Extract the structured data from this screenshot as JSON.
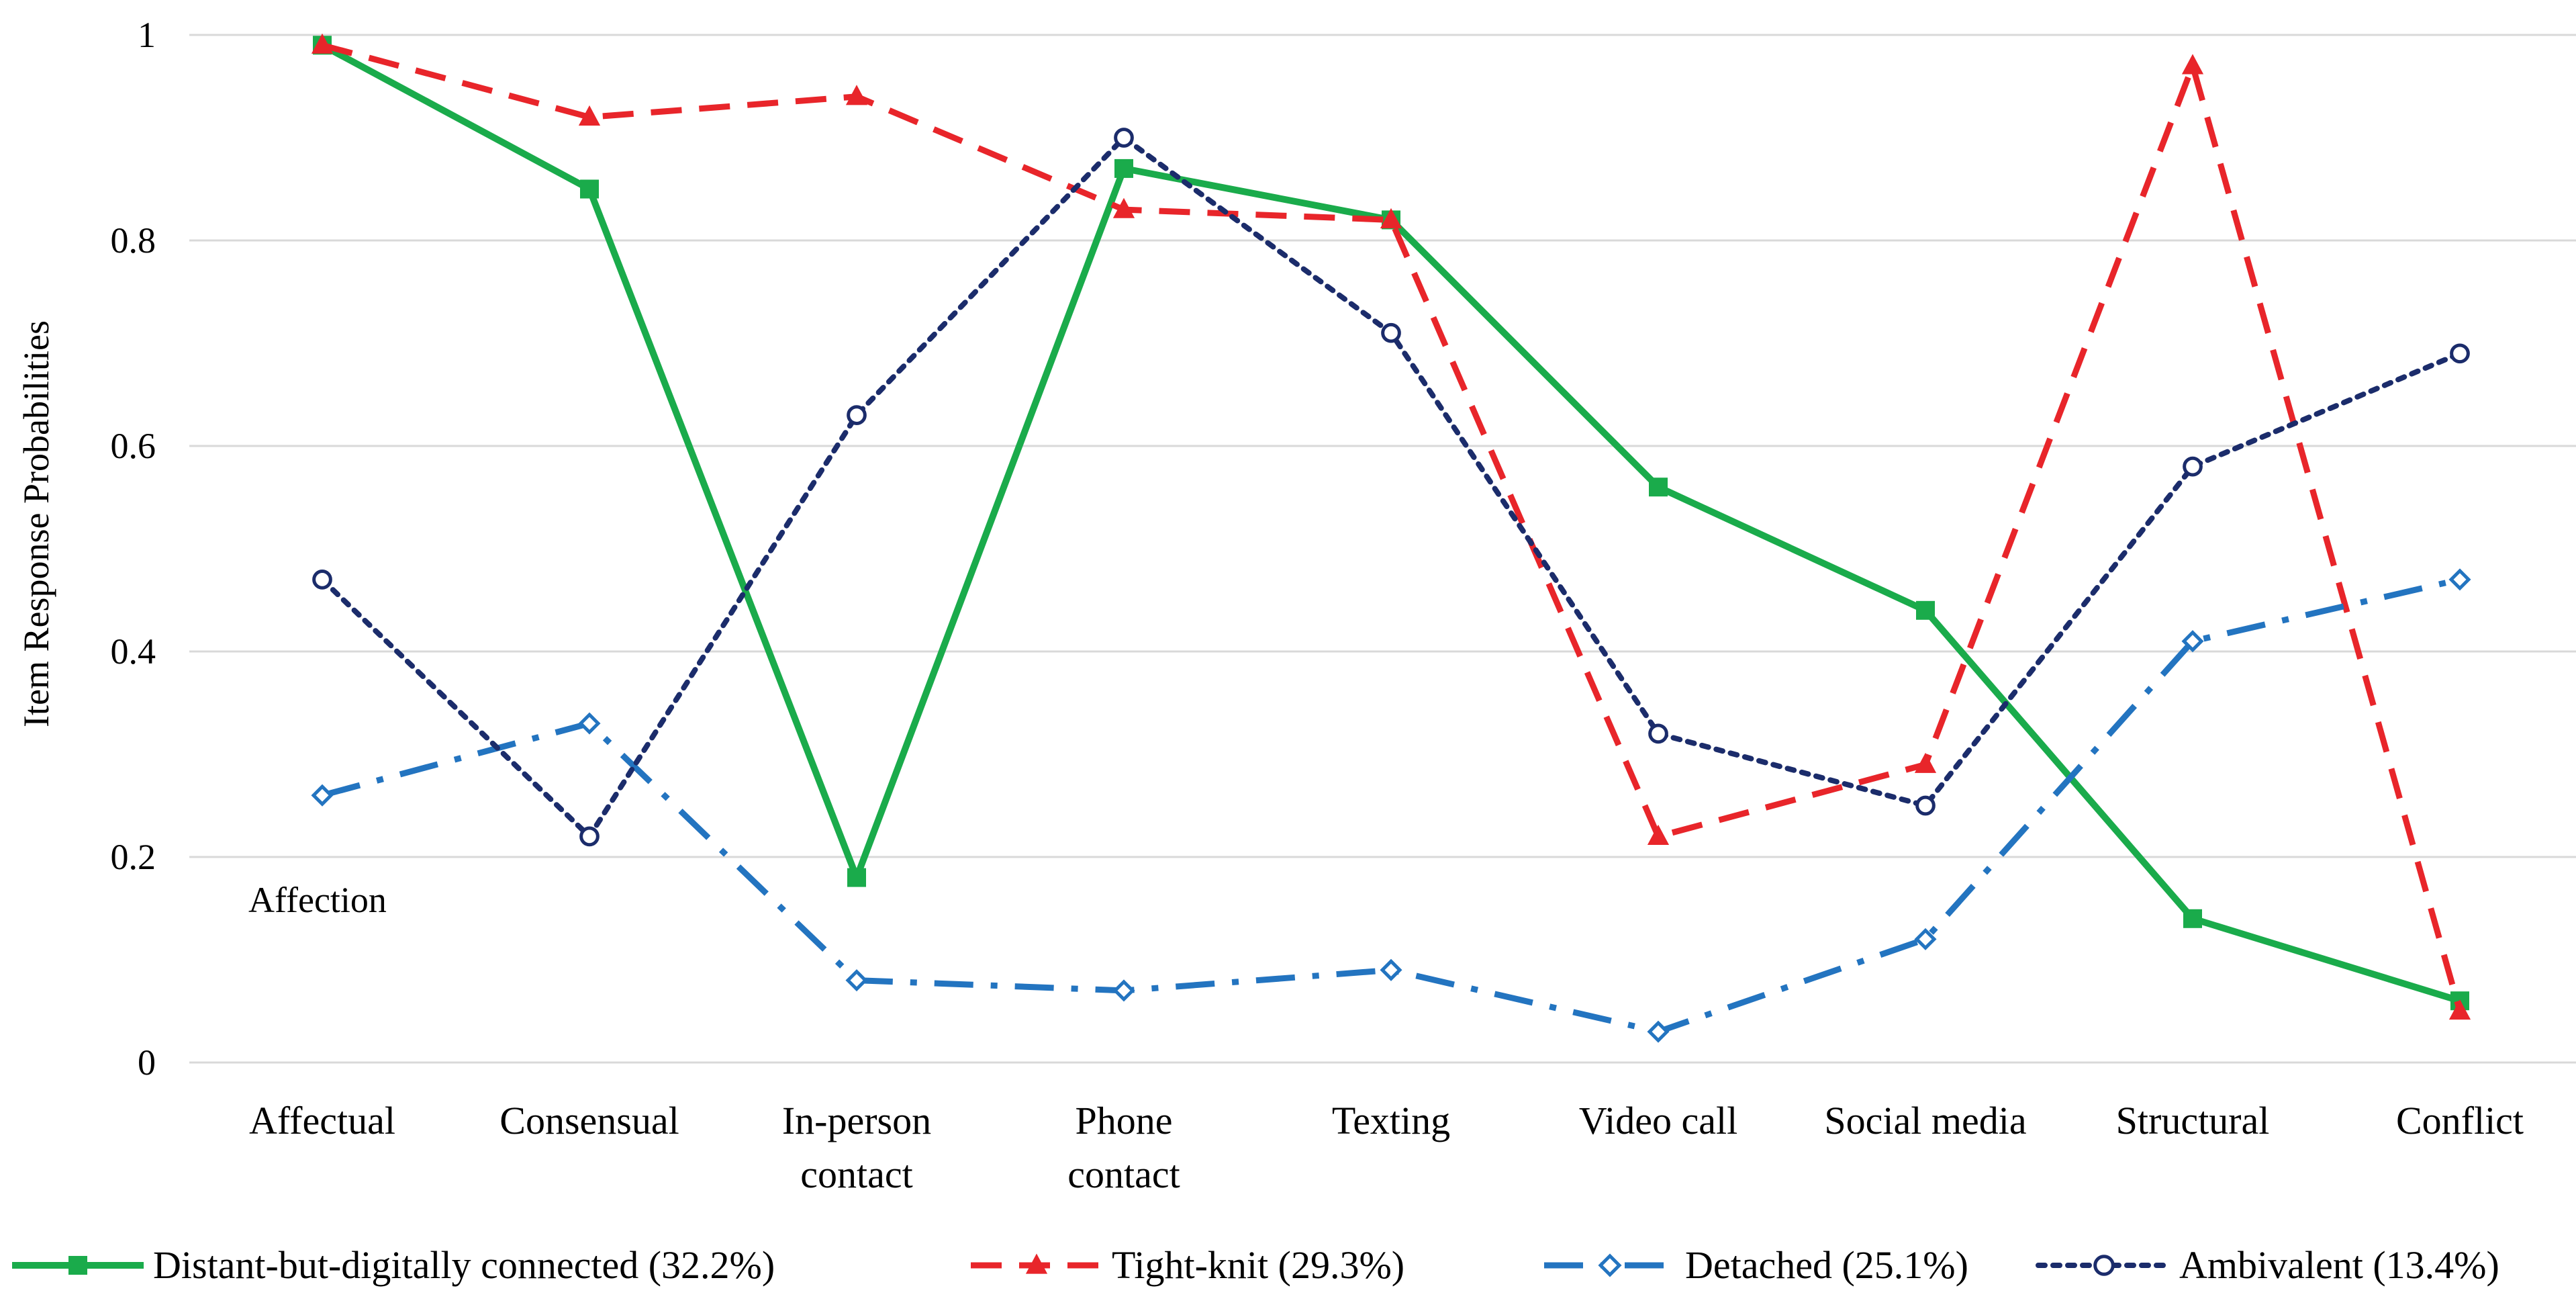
{
  "chart_data": {
    "type": "line",
    "title": "",
    "xlabel": "",
    "ylabel": "Item Response Probabilities",
    "ylim": [
      0,
      1
    ],
    "yticks": [
      0,
      0.2,
      0.4,
      0.6,
      0.8,
      1
    ],
    "ytick_labels": [
      "0",
      "0.2",
      "0.4",
      "0.6",
      "0.8",
      "1"
    ],
    "grid": true,
    "legend_position": "bottom",
    "categories": [
      [
        "Affectual"
      ],
      [
        "Consensual"
      ],
      [
        "In-person",
        "contact"
      ],
      [
        "Phone",
        "contact"
      ],
      [
        "Texting"
      ],
      [
        "Video call"
      ],
      [
        "Social media"
      ],
      [
        "Structural"
      ],
      [
        "Conflict"
      ]
    ],
    "annotation": "Affection",
    "series": [
      {
        "name": "Distant-but-digitally connected (32.2%)",
        "color": "#1aab4b",
        "dash": "solid",
        "marker": "square",
        "values": [
          0.99,
          0.85,
          0.18,
          0.87,
          0.82,
          0.56,
          0.44,
          0.14,
          0.06
        ]
      },
      {
        "name": "Tight-knit (29.3%)",
        "color": "#e8252a",
        "dash": "dashed",
        "marker": "triangle",
        "values": [
          0.99,
          0.92,
          0.94,
          0.83,
          0.82,
          0.22,
          0.29,
          0.97,
          0.05
        ]
      },
      {
        "name": "Detached (25.1%)",
        "color": "#2374c0",
        "dash": "dashdot",
        "marker": "diamond",
        "values": [
          0.26,
          0.33,
          0.08,
          0.07,
          0.09,
          0.03,
          0.12,
          0.41,
          0.47
        ]
      },
      {
        "name": "Ambivalent (13.4%)",
        "color": "#1b2c6b",
        "dash": "dotted",
        "marker": "circle",
        "values": [
          0.47,
          0.22,
          0.63,
          0.9,
          0.71,
          0.32,
          0.25,
          0.58,
          0.69
        ]
      }
    ]
  }
}
